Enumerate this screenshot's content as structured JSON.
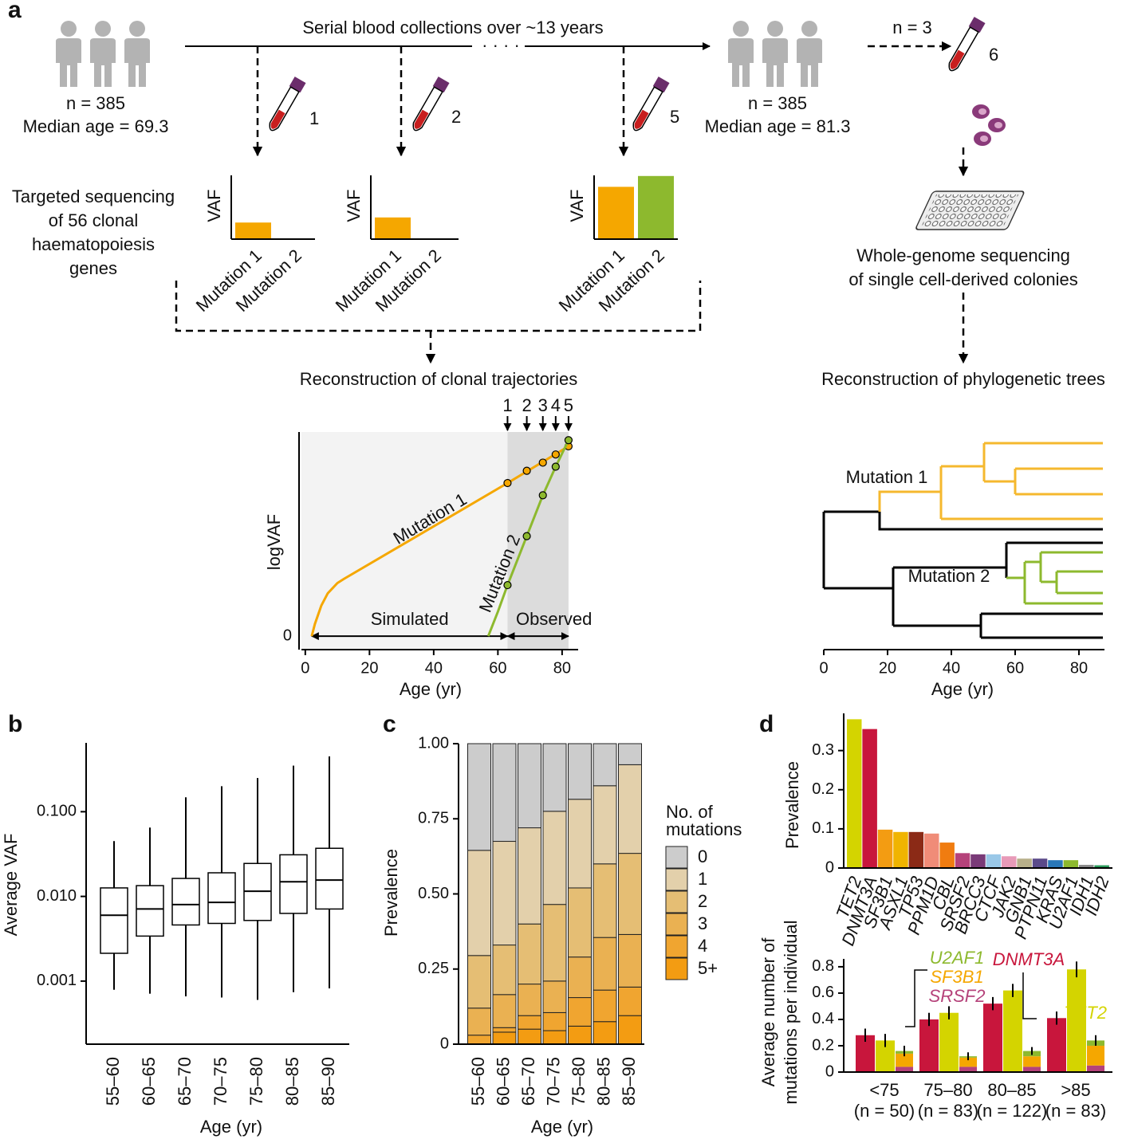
{
  "panel_labels": [
    "a",
    "b",
    "c",
    "d"
  ],
  "diagram": {
    "timeline_label": "Serial blood collections over ~13 years",
    "ellipsis": "· · · ·",
    "start_n": "n = 385",
    "start_age": "Median age = 69.3",
    "end_n": "n = 385",
    "end_age": "Median age = 81.3",
    "subset_n": "n = 3",
    "samples": [
      "1",
      "2",
      "5",
      "6"
    ],
    "targeted": [
      "Targeted sequencing",
      "of 56 clonal",
      "haematopoiesis",
      "genes"
    ],
    "wgs": [
      "Whole-genome sequencing",
      "of single cell-derived colonies"
    ],
    "clonal_title": "Reconstruction of clonal trajectories",
    "tree_title": "Reconstruction of phylogenetic trees"
  },
  "chart_data": [
    {
      "type": "bar",
      "ylabel": "VAF",
      "categories": [
        "Mutation 1",
        "Mutation 2"
      ],
      "values": [
        0.26,
        0
      ],
      "colors": [
        "#f5a700",
        "#8db92e"
      ],
      "ylim": [
        0,
        1
      ]
    },
    {
      "type": "bar",
      "ylabel": "VAF",
      "categories": [
        "Mutation 1",
        "Mutation 2"
      ],
      "values": [
        0.34,
        0
      ],
      "colors": [
        "#f5a700",
        "#8db92e"
      ],
      "ylim": [
        0,
        1
      ]
    },
    {
      "type": "bar",
      "ylabel": "VAF",
      "categories": [
        "Mutation 1",
        "Mutation 2"
      ],
      "values": [
        0.82,
        0.99
      ],
      "colors": [
        "#f5a700",
        "#8db92e"
      ],
      "ylim": [
        0,
        1
      ]
    },
    {
      "type": "line",
      "ylabel": "logVAF",
      "xlabel": "Age (yr)",
      "xlim": [
        -1.2,
        85
      ],
      "ylim": [
        -0.066,
        1
      ],
      "xticks": [
        0,
        20,
        40,
        60,
        80
      ],
      "yticks": [
        0
      ],
      "series": [
        {
          "name": "Mutation 1",
          "color": "#f5a700",
          "x": [
            2,
            3,
            5,
            7,
            10,
            12,
            63,
            82
          ],
          "values": [
            0,
            0.06,
            0.15,
            0.21,
            0.26,
            0.28,
            0.75,
            0.93
          ],
          "observed_x": [
            63,
            69,
            74,
            78,
            82
          ],
          "observed_values": [
            0.75,
            0.81,
            0.85,
            0.89,
            0.93
          ]
        },
        {
          "name": "Mutation 2",
          "color": "#8db92e",
          "x": [
            57,
            60,
            63,
            69,
            74,
            78,
            82
          ],
          "values": [
            0,
            0.12,
            0.25,
            0.49,
            0.69,
            0.83,
            0.96
          ],
          "observed_x": [
            63,
            69,
            74,
            78,
            82
          ],
          "observed_values": [
            0.25,
            0.49,
            0.69,
            0.83,
            0.96
          ]
        }
      ],
      "sample_x": [
        63,
        69,
        74,
        78,
        82
      ],
      "sample_labels": [
        "1",
        "2",
        "3",
        "4",
        "5"
      ],
      "region_labels": [
        "Simulated",
        "Observed"
      ]
    },
    {
      "type": "tree",
      "xlabel": "Age (yr)",
      "xlim": [
        0,
        88
      ],
      "xticks": [
        0,
        20,
        40,
        60,
        80
      ],
      "labels": [
        "Mutation 1",
        "Mutation 2"
      ]
    },
    {
      "type": "box",
      "ylabel": "Average VAF",
      "xlabel": "Age (yr)",
      "log_scale": true,
      "ylim": [
        0.00018,
        0.65
      ],
      "yticks": [
        {
          "value": 0.001,
          "label": "0.001"
        },
        {
          "value": 0.01,
          "label": "0.010"
        },
        {
          "value": 0.1,
          "label": "0.100"
        }
      ],
      "categories": [
        "55–60",
        "60–65",
        "65–70",
        "70–75",
        "75–80",
        "80–85",
        "85–90"
      ],
      "median": [
        0.006,
        0.0071,
        0.008,
        0.0085,
        0.0115,
        0.0149,
        0.0156
      ],
      "q1": [
        0.00213,
        0.0034,
        0.0046,
        0.0048,
        0.0052,
        0.0063,
        0.0071
      ],
      "q3": [
        0.0126,
        0.0134,
        0.0163,
        0.019,
        0.0245,
        0.031,
        0.037
      ],
      "whisker_low": [
        0.00079,
        0.00071,
        0.00066,
        0.00064,
        0.0006,
        0.00074,
        0.00082
      ],
      "whisker_high": [
        0.045,
        0.065,
        0.148,
        0.2,
        0.25,
        0.35,
        0.45
      ]
    },
    {
      "type": "stacked_bar",
      "ylabel": "Prevalence",
      "xlabel": "Age (yr)",
      "ylim": [
        0,
        1
      ],
      "yticks": [
        0,
        0.25,
        {
          "value": 0.5,
          "label": "0.50"
        },
        0.75,
        {
          "value": 1,
          "label": "1.00"
        }
      ],
      "legend_title": [
        "No. of",
        "mutations"
      ],
      "categories": [
        "55–60",
        "60–65",
        "65–70",
        "70–75",
        "75–80",
        "80–85",
        "85–90"
      ],
      "series": [
        {
          "name": "0",
          "color": "#cccccc",
          "values": [
            0.355,
            0.325,
            0.28,
            0.225,
            0.185,
            0.14,
            0.07
          ]
        },
        {
          "name": "1",
          "color": "#e3d0ab",
          "values": [
            0.35,
            0.345,
            0.32,
            0.31,
            0.295,
            0.26,
            0.295
          ]
        },
        {
          "name": "2",
          "color": "#e5be74",
          "values": [
            0.175,
            0.165,
            0.2,
            0.255,
            0.23,
            0.245,
            0.27
          ]
        },
        {
          "name": "3",
          "color": "#eab152",
          "values": [
            0.09,
            0.11,
            0.105,
            0.105,
            0.135,
            0.175,
            0.175
          ]
        },
        {
          "name": "4",
          "color": "#f0a530",
          "values": [
            0.03,
            0.015,
            0.045,
            0.06,
            0.095,
            0.105,
            0.095
          ]
        },
        {
          "name": "5+",
          "color": "#f39c12",
          "values": [
            0,
            0.04,
            0.05,
            0.045,
            0.06,
            0.075,
            0.095
          ]
        }
      ]
    },
    {
      "type": "bar",
      "ylabel": "Prevalence",
      "ylim": [
        0,
        0.395
      ],
      "yticks": [
        0,
        0.1,
        0.2,
        0.3
      ],
      "categories": [
        "TET2",
        "DNMT3A",
        "SF3B1",
        "ASXL1",
        "TP53",
        "PPM1D",
        "CBL",
        "SRSF2",
        "BRCC3",
        "CTCF",
        "JAK2",
        "GNB1",
        "PTPN11",
        "KRAS",
        "U2AF1",
        "IDH1",
        "IDH2"
      ],
      "values": [
        0.38,
        0.355,
        0.098,
        0.092,
        0.092,
        0.088,
        0.065,
        0.038,
        0.035,
        0.035,
        0.03,
        0.024,
        0.024,
        0.02,
        0.02,
        0.008,
        0.007
      ],
      "colors": [
        "#d4d400",
        "#c8163c",
        "#f39c12",
        "#f0b400",
        "#8b2a16",
        "#f08c78",
        "#f07c10",
        "#b5427a",
        "#7a3a78",
        "#9ac8e8",
        "#e89ab8",
        "#b8b08a",
        "#5a4a8a",
        "#2a78b8",
        "#8db92e",
        "#888888",
        "#2a9a5a"
      ]
    },
    {
      "type": "grouped_bar",
      "ylabel": [
        "Average number of",
        "mutations per individual"
      ],
      "ylim": [
        0,
        0.86
      ],
      "yticks": [
        0,
        0.2,
        0.4,
        0.6,
        0.8
      ],
      "categories": [
        "<75",
        "75–80",
        "80–85",
        ">85"
      ],
      "n_labels": [
        "(n = 50)",
        "(n = 83)",
        "(n = 122)",
        "(n = 83)"
      ],
      "series": [
        {
          "name": "DNMT3A",
          "color": "#c8163c",
          "values": [
            0.28,
            0.4,
            0.52,
            0.41
          ],
          "errors": [
            0.05,
            0.05,
            0.05,
            0.05
          ]
        },
        {
          "name": "TET2",
          "color": "#d4d400",
          "values": [
            0.24,
            0.45,
            0.62,
            0.78
          ],
          "errors": [
            0.05,
            0.05,
            0.05,
            0.06
          ]
        },
        {
          "name": "SRSF2",
          "color": "#b5427a",
          "stack": true,
          "values": [
            0.04,
            0.04,
            0.04,
            0.05
          ]
        },
        {
          "name": "SF3B1",
          "color": "#f5a700",
          "stack": true,
          "values": [
            0.1,
            0.07,
            0.08,
            0.15
          ]
        },
        {
          "name": "U2AF1",
          "color": "#8db92e",
          "stack": true,
          "values": [
            0.02,
            0.01,
            0.04,
            0.04
          ]
        }
      ],
      "stack_errors": [
        0.04,
        0.03,
        0.03,
        0.04
      ]
    }
  ]
}
